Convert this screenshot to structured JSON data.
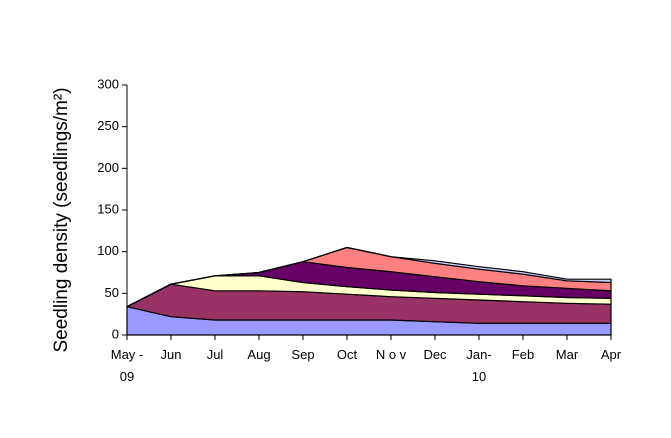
{
  "chart_data": {
    "type": "stacked-area",
    "y_label": "Seedling density (seedlings/m²)",
    "categories": [
      "May -\n09",
      "Jun",
      "Jul",
      "Aug",
      "Sep",
      "Oct",
      "N o v",
      "Dec",
      "Jan-\n10",
      "Feb",
      "Mar",
      "Apr"
    ],
    "series": [
      {
        "color": "#9999ff",
        "values": [
          34,
          22,
          18,
          18,
          18,
          18,
          18,
          16,
          14,
          14,
          14,
          14
        ]
      },
      {
        "color": "#993366",
        "values": [
          0,
          39,
          35,
          35,
          34,
          31,
          28,
          28,
          28,
          26,
          24,
          23
        ]
      },
      {
        "color": "#ffffcc",
        "values": [
          0,
          0,
          18,
          18,
          11,
          9,
          8,
          7,
          7,
          7,
          7,
          7
        ]
      },
      {
        "color": "#660066",
        "values": [
          0,
          0,
          0,
          4,
          25,
          23,
          22,
          19,
          15,
          12,
          11,
          9
        ]
      },
      {
        "color": "#ff8080",
        "values": [
          0,
          0,
          0,
          0,
          0,
          24,
          18,
          16,
          15,
          14,
          9,
          10
        ]
      },
      {
        "color": "#ccccff",
        "values": [
          0,
          0,
          0,
          0,
          0,
          0,
          0,
          3,
          3,
          3,
          2,
          4
        ]
      }
    ],
    "ylim": [
      0,
      300
    ],
    "yticks": [
      0,
      50,
      100,
      150,
      200,
      250,
      300
    ]
  }
}
